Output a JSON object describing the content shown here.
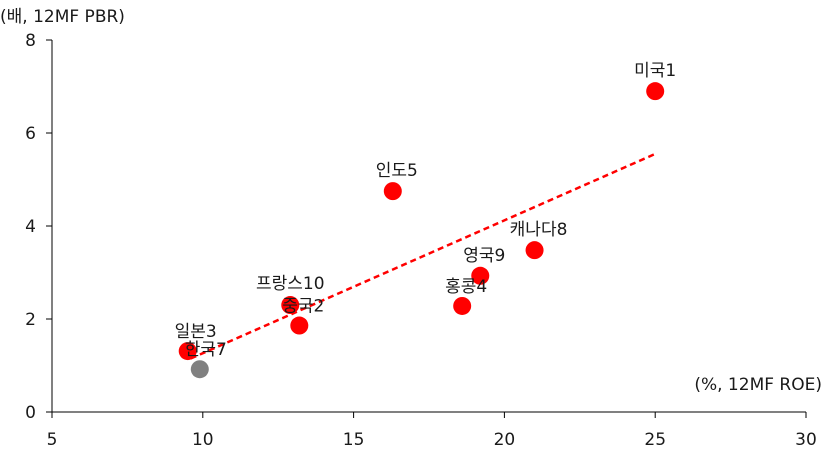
{
  "chart_data": {
    "type": "scatter",
    "ylabel": "(배, 12MF PBR)",
    "xlabel": "(%, 12MF ROE)",
    "xlim": [
      5,
      30
    ],
    "ylim": [
      0,
      8
    ],
    "x_ticks": [
      5,
      10,
      15,
      20,
      25,
      30
    ],
    "y_ticks": [
      0,
      2,
      4,
      6,
      8
    ],
    "grid": false,
    "legend": "none",
    "points": [
      {
        "label": "미국1",
        "x": 25.0,
        "y": 6.9,
        "color": "#ff0000"
      },
      {
        "label": "인도5",
        "x": 16.3,
        "y": 4.75,
        "color": "#ff0000"
      },
      {
        "label": "캐나다8",
        "x": 21.0,
        "y": 3.48,
        "color": "#ff0000"
      },
      {
        "label": "영국9",
        "x": 19.2,
        "y": 2.93,
        "color": "#ff0000"
      },
      {
        "label": "홍콩4",
        "x": 18.6,
        "y": 2.28,
        "color": "#ff0000"
      },
      {
        "label": "프랑스10",
        "x": 12.9,
        "y": 2.3,
        "color": "#ff0000"
      },
      {
        "label": "중국2",
        "x": 13.2,
        "y": 1.86,
        "color": "#ff0000"
      },
      {
        "label": "일본3",
        "x": 9.5,
        "y": 1.31,
        "color": "#ff0000"
      },
      {
        "label": "한국7",
        "x": 9.9,
        "y": 0.92,
        "color": "#808080"
      }
    ],
    "trendline": {
      "x": [
        9.6,
        25.0
      ],
      "y": [
        1.15,
        5.55
      ],
      "color": "#ff0000",
      "style": "dashed"
    }
  }
}
